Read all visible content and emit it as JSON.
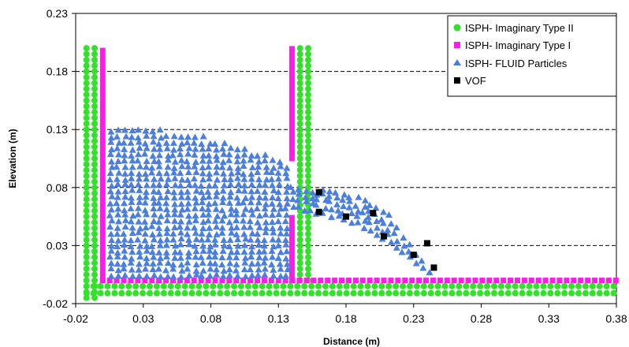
{
  "chart_data": {
    "type": "scatter",
    "title": "",
    "xlabel": "Distance (m)",
    "ylabel": "Elevation (m)",
    "xlim": [
      -0.02,
      0.38
    ],
    "ylim": [
      -0.02,
      0.23
    ],
    "x_ticks": [
      "-0.02",
      "0.03",
      "0.08",
      "0.13",
      "0.18",
      "0.23",
      "0.28",
      "0.33",
      "0.38"
    ],
    "y_ticks": [
      "0.23",
      "0.18",
      "0.13",
      "0.08",
      "0.03",
      "-0.02"
    ],
    "grid": "horizontal dashed",
    "legend_position": "top-right",
    "tank_walls": {
      "left_wall_x": 0.0,
      "gate_x": 0.14,
      "wall_top_y": 0.2,
      "bottom_y": 0.0,
      "gate_opening_y": [
        0.0,
        0.08
      ],
      "domain_end_x": 0.38
    },
    "series": [
      {
        "name": "ISPH- Imaginary Type II",
        "marker": "circle",
        "color": "#33e02a"
      },
      {
        "name": "ISPH- Imaginary Type I",
        "marker": "square",
        "color": "#ff1ce8"
      },
      {
        "name": "ISPH- FLUID Particles",
        "marker": "triangle",
        "color": "#4a7fe0"
      },
      {
        "name": "VOF",
        "marker": "square",
        "color": "#000000",
        "points": [
          {
            "x": 0.16,
            "y": 0.076
          },
          {
            "x": 0.16,
            "y": 0.059
          },
          {
            "x": 0.18,
            "y": 0.055
          },
          {
            "x": 0.2,
            "y": 0.058
          },
          {
            "x": 0.208,
            "y": 0.038
          },
          {
            "x": 0.24,
            "y": 0.032
          },
          {
            "x": 0.23,
            "y": 0.022
          },
          {
            "x": 0.245,
            "y": 0.011
          }
        ]
      }
    ]
  }
}
